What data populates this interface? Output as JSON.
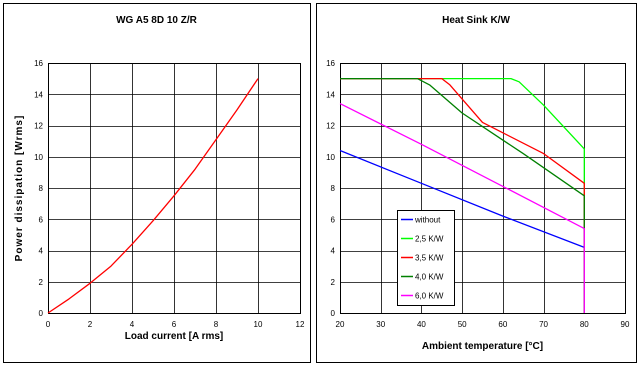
{
  "chart_data": [
    {
      "type": "line",
      "title": "WG A5 8D 10 Z/R",
      "xlabel": "Load current [A rms]",
      "ylabel": "Power dissipation  [Wrms]",
      "xlim": [
        0,
        12
      ],
      "ylim": [
        0,
        16
      ],
      "x_ticks": [
        "0",
        "2",
        "4",
        "6",
        "8",
        "10",
        "12"
      ],
      "y_ticks": [
        "0",
        "2",
        "4",
        "6",
        "8",
        "10",
        "12",
        "14",
        "16"
      ],
      "grid": true,
      "series": [
        {
          "color": "#ff0000",
          "points": [
            [
              0,
              0
            ],
            [
              1,
              0.9
            ],
            [
              2,
              1.9
            ],
            [
              3,
              3.0
            ],
            [
              4,
              4.4
            ],
            [
              5,
              5.9
            ],
            [
              6,
              7.5
            ],
            [
              7,
              9.2
            ],
            [
              8,
              11.1
            ],
            [
              9,
              13.0
            ],
            [
              10,
              15.0
            ]
          ]
        }
      ]
    },
    {
      "type": "line",
      "title": "Heat Sink K/W",
      "xlabel": "Ambient temperature [°C]",
      "ylabel": "",
      "xlim": [
        20,
        90
      ],
      "ylim": [
        0,
        16
      ],
      "x_ticks": [
        "20",
        "30",
        "40",
        "50",
        "60",
        "70",
        "80",
        "90"
      ],
      "y_ticks": [
        "0",
        "2",
        "4",
        "6",
        "8",
        "10",
        "12",
        "14",
        "16"
      ],
      "grid": true,
      "legend": "lower-left",
      "series": [
        {
          "name": "without",
          "color": "#0000ff",
          "points": [
            [
              20,
              10.4
            ],
            [
              40,
              8.3
            ],
            [
              60,
              6.2
            ],
            [
              80,
              4.2
            ],
            [
              80,
              0
            ]
          ]
        },
        {
          "name": "2,5 K/W",
          "color": "#00ff00",
          "points": [
            [
              20,
              15.0
            ],
            [
              62,
              15.0
            ],
            [
              64,
              14.8
            ],
            [
              70,
              13.3
            ],
            [
              80,
              10.5
            ],
            [
              80,
              0
            ]
          ]
        },
        {
          "name": "3,5 K/W",
          "color": "#ff0000",
          "points": [
            [
              20,
              15.0
            ],
            [
              45,
              15.0
            ],
            [
              47,
              14.6
            ],
            [
              55,
              12.2
            ],
            [
              70,
              10.2
            ],
            [
              80,
              8.3
            ],
            [
              80,
              0
            ]
          ]
        },
        {
          "name": "4,0 K/W",
          "color": "#008000",
          "points": [
            [
              20,
              15.0
            ],
            [
              39,
              15.0
            ],
            [
              42,
              14.6
            ],
            [
              50,
              12.8
            ],
            [
              65,
              10.2
            ],
            [
              80,
              7.5
            ],
            [
              80,
              0
            ]
          ]
        },
        {
          "name": "6,0 K/W",
          "color": "#ff00ff",
          "points": [
            [
              20,
              13.4
            ],
            [
              40,
              10.8
            ],
            [
              60,
              8.1
            ],
            [
              80,
              5.4
            ],
            [
              80,
              0
            ]
          ]
        }
      ]
    }
  ]
}
